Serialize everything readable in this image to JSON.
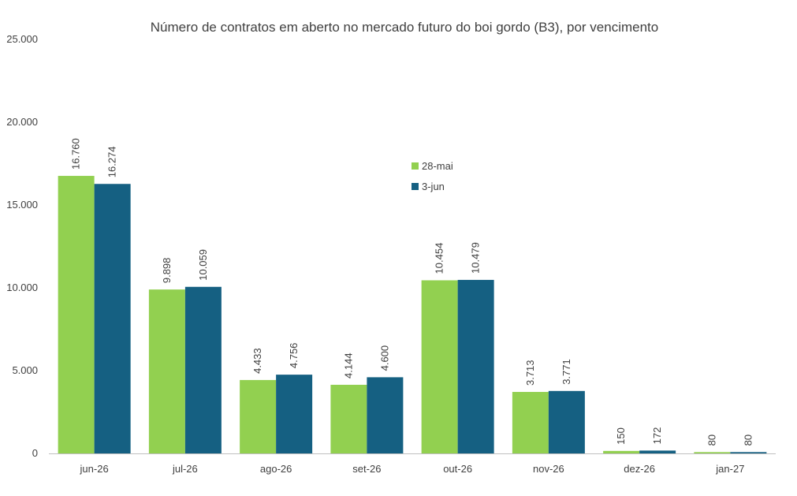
{
  "chart_data": {
    "type": "bar",
    "title": "Número de contratos em aberto no mercado futuro do boi gordo (B3), por vencimento",
    "xlabel": "",
    "ylabel": "",
    "categories": [
      "jun-26",
      "jul-26",
      "ago-26",
      "set-26",
      "out-26",
      "nov-26",
      "dez-26",
      "jan-27"
    ],
    "series": [
      {
        "name": "28-mai",
        "color": "#92D050",
        "values": [
          16760,
          9898,
          4433,
          4144,
          10454,
          3713,
          150,
          80
        ],
        "labels": [
          "16.760",
          "9.898",
          "4.433",
          "4.144",
          "10.454",
          "3.713",
          "150",
          "80"
        ]
      },
      {
        "name": "3-jun",
        "color": "#156082",
        "values": [
          16274,
          10059,
          4756,
          4600,
          10479,
          3771,
          172,
          80
        ],
        "labels": [
          "16.274",
          "10.059",
          "4.756",
          "4.600",
          "10.479",
          "3.771",
          "172",
          "80"
        ]
      }
    ],
    "ylim": [
      0,
      25000
    ],
    "yticks": [
      0,
      5000,
      10000,
      15000,
      20000,
      25000
    ],
    "ytick_labels": [
      "0",
      "5.000",
      "10.000",
      "15.000",
      "20.000",
      "25.000"
    ],
    "grid": false,
    "legend_position": "top-center"
  }
}
